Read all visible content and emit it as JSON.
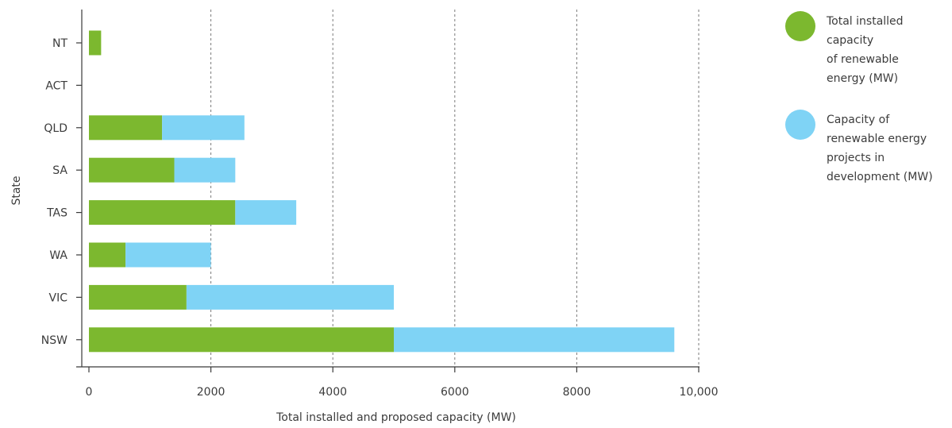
{
  "chart_data": {
    "type": "bar",
    "orientation": "horizontal",
    "stacked": true,
    "categories": [
      "NT",
      "ACT",
      "QLD",
      "SA",
      "TAS",
      "WA",
      "VIC",
      "NSW"
    ],
    "series": [
      {
        "name": "Total installed capacity of renewable energy (MW)",
        "legend_lines": [
          "Total installed",
          "capacity",
          "of renewable",
          "energy (MW)"
        ],
        "color": "#7cb82f",
        "values": [
          200,
          0,
          1200,
          1400,
          2400,
          600,
          1600,
          5000
        ]
      },
      {
        "name": "Capacity of renewable energy projects in development (MW)",
        "legend_lines": [
          "Capacity of",
          "renewable energy",
          "projects in",
          "development (MW)"
        ],
        "color": "#7fd3f5",
        "values": [
          0,
          0,
          1350,
          1000,
          1000,
          1400,
          3400,
          4600
        ]
      }
    ],
    "xlabel": "Total installed and proposed capacity (MW)",
    "ylabel": "State",
    "xlim": [
      0,
      10000
    ],
    "xticks": [
      0,
      2000,
      4000,
      6000,
      8000,
      10000
    ],
    "xtick_labels": [
      "0",
      "2000",
      "4000",
      "6000",
      "8000",
      "10,000"
    ],
    "grid": "vertical dashed",
    "legend_position": "right"
  }
}
